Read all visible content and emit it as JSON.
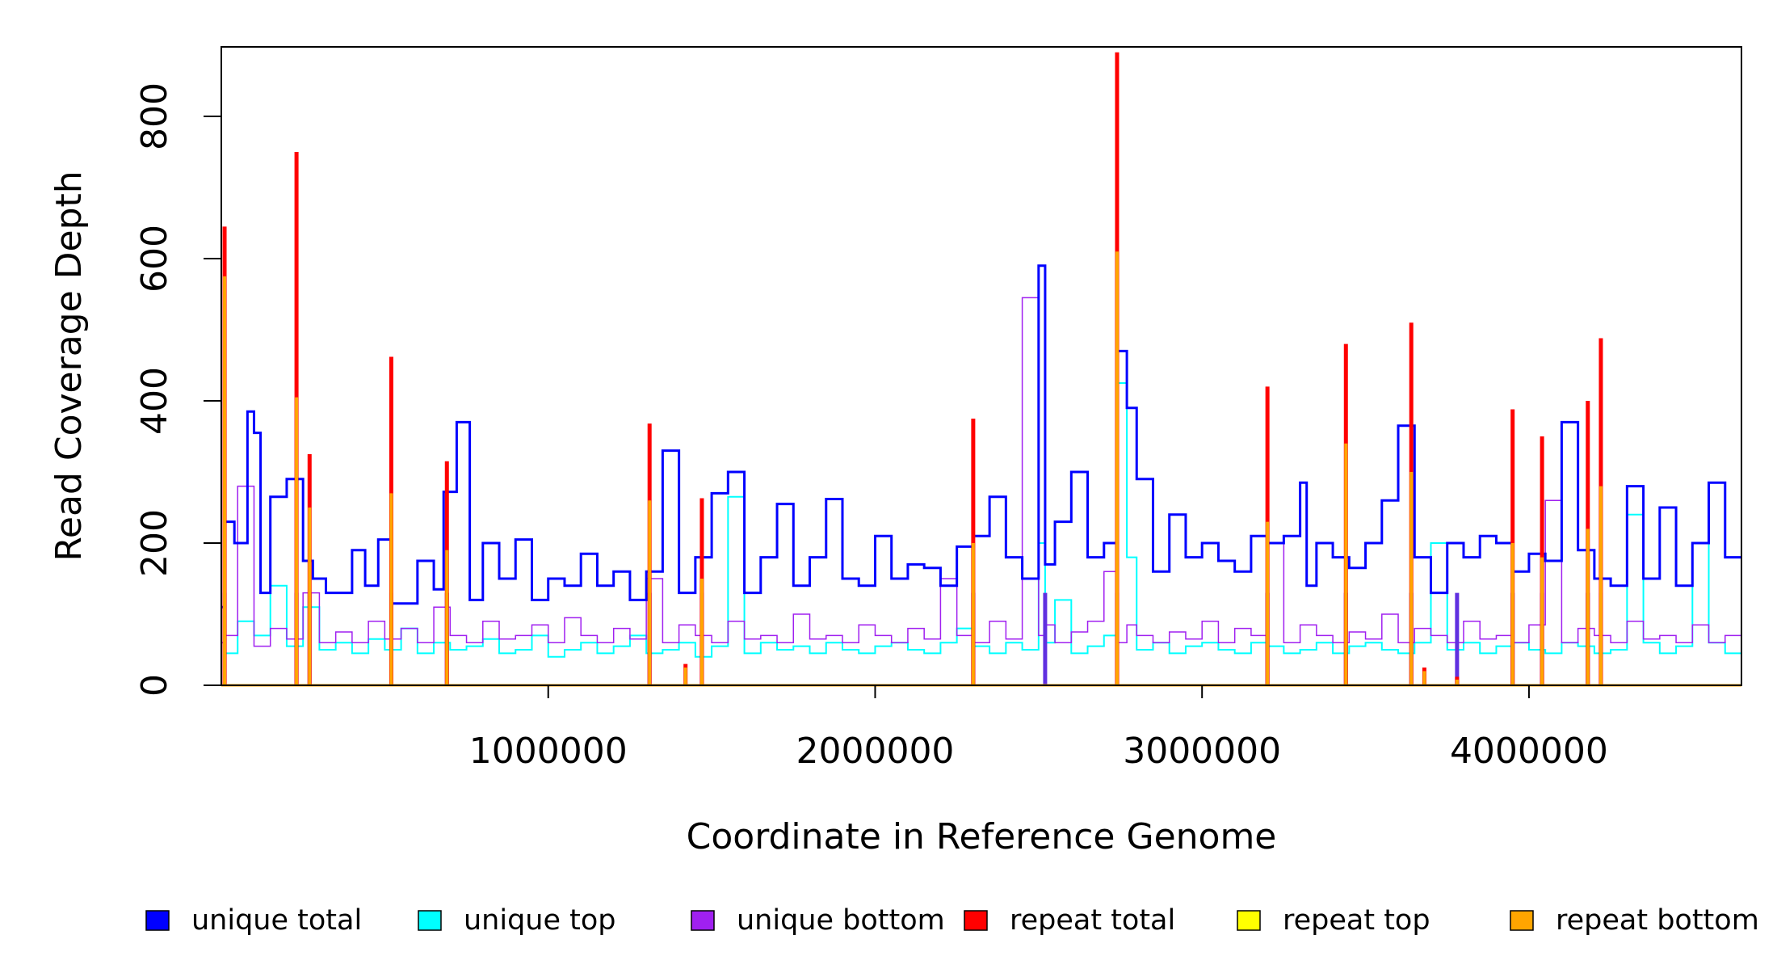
{
  "chart_data": {
    "type": "line",
    "title": "",
    "xlabel": "Coordinate in Reference Genome",
    "ylabel": "Read Coverage Depth",
    "xlim": [
      0,
      4650000
    ],
    "ylim": [
      0,
      900
    ],
    "x_ticks": [
      1000000,
      2000000,
      3000000,
      4000000
    ],
    "x_tick_labels": [
      "1000000",
      "2000000",
      "3000000",
      "4000000"
    ],
    "y_ticks": [
      0,
      200,
      400,
      600,
      800
    ],
    "y_tick_labels": [
      "0",
      "200",
      "400",
      "600",
      "800"
    ],
    "grid": false,
    "legend_position": "bottom",
    "legend": [
      {
        "label": "unique total",
        "color": "#0000ff"
      },
      {
        "label": "unique top",
        "color": "#00ffff"
      },
      {
        "label": "unique bottom",
        "color": "#a020f0"
      },
      {
        "label": "repeat total",
        "color": "#ff0000"
      },
      {
        "label": "repeat top",
        "color": "#ffff00"
      },
      {
        "label": "repeat bottom",
        "color": "#ffa500"
      }
    ],
    "series": [
      {
        "name": "unique total",
        "color": "#0000ff",
        "x": [
          10000,
          40000,
          80000,
          100000,
          120000,
          150000,
          200000,
          220000,
          250000,
          280000,
          320000,
          400000,
          440000,
          480000,
          520000,
          600000,
          650000,
          680000,
          720000,
          760000,
          800000,
          850000,
          900000,
          950000,
          1000000,
          1050000,
          1100000,
          1150000,
          1200000,
          1250000,
          1300000,
          1350000,
          1400000,
          1450000,
          1500000,
          1550000,
          1600000,
          1650000,
          1700000,
          1750000,
          1800000,
          1850000,
          1900000,
          1950000,
          2000000,
          2050000,
          2100000,
          2150000,
          2200000,
          2250000,
          2300000,
          2350000,
          2400000,
          2450000,
          2500000,
          2520000,
          2550000,
          2600000,
          2650000,
          2700000,
          2740000,
          2770000,
          2800000,
          2850000,
          2900000,
          2950000,
          3000000,
          3050000,
          3100000,
          3150000,
          3200000,
          3250000,
          3300000,
          3320000,
          3350000,
          3400000,
          3450000,
          3500000,
          3550000,
          3600000,
          3650000,
          3700000,
          3750000,
          3800000,
          3850000,
          3900000,
          3950000,
          4000000,
          4050000,
          4100000,
          4150000,
          4200000,
          4250000,
          4300000,
          4350000,
          4400000,
          4450000,
          4500000,
          4550000,
          4600000,
          4640000
        ],
        "values": [
          110,
          230,
          200,
          385,
          355,
          130,
          265,
          290,
          290,
          175,
          150,
          130,
          190,
          140,
          205,
          115,
          175,
          135,
          272,
          370,
          120,
          200,
          150,
          205,
          120,
          150,
          140,
          185,
          140,
          160,
          120,
          160,
          330,
          130,
          180,
          270,
          300,
          130,
          180,
          255,
          140,
          180,
          262,
          150,
          140,
          210,
          150,
          170,
          165,
          140,
          195,
          210,
          265,
          180,
          150,
          590,
          170,
          230,
          300,
          180,
          200,
          470,
          390,
          290,
          160,
          240,
          180,
          200,
          175,
          160,
          210,
          200,
          210,
          285,
          140,
          200,
          180,
          165,
          200,
          260,
          365,
          180,
          130,
          200,
          180,
          210,
          200,
          160,
          185,
          175,
          370,
          190,
          150,
          140,
          280,
          150,
          250,
          140,
          200,
          285,
          180
        ]
      },
      {
        "name": "unique top",
        "color": "#00ffff",
        "x": [
          10000,
          50000,
          100000,
          150000,
          200000,
          250000,
          300000,
          350000,
          400000,
          450000,
          500000,
          550000,
          600000,
          650000,
          700000,
          750000,
          800000,
          850000,
          900000,
          950000,
          1000000,
          1050000,
          1100000,
          1150000,
          1200000,
          1250000,
          1300000,
          1350000,
          1400000,
          1450000,
          1500000,
          1550000,
          1600000,
          1650000,
          1700000,
          1750000,
          1800000,
          1850000,
          1900000,
          1950000,
          2000000,
          2050000,
          2100000,
          2150000,
          2200000,
          2250000,
          2300000,
          2350000,
          2400000,
          2450000,
          2500000,
          2520000,
          2550000,
          2600000,
          2650000,
          2700000,
          2740000,
          2770000,
          2800000,
          2850000,
          2900000,
          2950000,
          3000000,
          3050000,
          3100000,
          3150000,
          3200000,
          3250000,
          3300000,
          3350000,
          3400000,
          3450000,
          3500000,
          3550000,
          3600000,
          3650000,
          3700000,
          3750000,
          3800000,
          3850000,
          3900000,
          3950000,
          4000000,
          4050000,
          4100000,
          4150000,
          4200000,
          4250000,
          4300000,
          4350000,
          4400000,
          4450000,
          4500000,
          4550000,
          4600000,
          4640000
        ],
        "values": [
          60,
          45,
          90,
          70,
          140,
          55,
          110,
          50,
          60,
          45,
          65,
          50,
          80,
          45,
          60,
          50,
          55,
          65,
          45,
          50,
          70,
          40,
          50,
          60,
          45,
          55,
          70,
          45,
          50,
          60,
          40,
          55,
          265,
          45,
          60,
          50,
          55,
          45,
          60,
          50,
          45,
          55,
          60,
          50,
          45,
          60,
          80,
          55,
          45,
          60,
          50,
          200,
          60,
          120,
          45,
          55,
          70,
          425,
          180,
          50,
          60,
          45,
          55,
          60,
          50,
          45,
          60,
          55,
          45,
          50,
          60,
          45,
          55,
          60,
          50,
          45,
          60,
          200,
          50,
          60,
          45,
          55,
          60,
          50,
          45,
          60,
          55,
          45,
          50,
          240,
          60,
          45,
          55,
          200,
          60,
          45
        ]
      },
      {
        "name": "unique bottom",
        "color": "#a020f0",
        "x": [
          10000,
          50000,
          100000,
          150000,
          200000,
          250000,
          300000,
          350000,
          400000,
          450000,
          500000,
          550000,
          600000,
          650000,
          700000,
          750000,
          800000,
          850000,
          900000,
          950000,
          1000000,
          1050000,
          1100000,
          1150000,
          1200000,
          1250000,
          1300000,
          1350000,
          1400000,
          1450000,
          1500000,
          1550000,
          1600000,
          1650000,
          1700000,
          1750000,
          1800000,
          1850000,
          1900000,
          1950000,
          2000000,
          2050000,
          2100000,
          2150000,
          2200000,
          2250000,
          2300000,
          2350000,
          2400000,
          2450000,
          2500000,
          2520000,
          2550000,
          2600000,
          2650000,
          2700000,
          2740000,
          2770000,
          2800000,
          2850000,
          2900000,
          2950000,
          3000000,
          3050000,
          3100000,
          3150000,
          3200000,
          3250000,
          3300000,
          3350000,
          3400000,
          3450000,
          3500000,
          3550000,
          3600000,
          3650000,
          3700000,
          3750000,
          3800000,
          3850000,
          3900000,
          3950000,
          4000000,
          4050000,
          4100000,
          4150000,
          4200000,
          4250000,
          4300000,
          4350000,
          4400000,
          4450000,
          4500000,
          4550000,
          4600000,
          4640000
        ],
        "values": [
          60,
          70,
          280,
          55,
          80,
          65,
          130,
          60,
          75,
          60,
          90,
          65,
          80,
          60,
          110,
          70,
          60,
          90,
          65,
          70,
          85,
          60,
          95,
          70,
          60,
          80,
          65,
          150,
          60,
          85,
          70,
          60,
          90,
          65,
          70,
          60,
          100,
          65,
          70,
          60,
          85,
          70,
          60,
          80,
          65,
          150,
          70,
          60,
          90,
          65,
          545,
          70,
          85,
          60,
          75,
          90,
          160,
          60,
          85,
          70,
          60,
          75,
          65,
          90,
          60,
          80,
          70,
          200,
          60,
          85,
          70,
          60,
          75,
          65,
          100,
          60,
          80,
          70,
          60,
          90,
          65,
          70,
          60,
          85,
          260,
          60,
          80,
          70,
          60,
          90,
          65,
          70,
          60,
          85,
          60,
          70
        ]
      },
      {
        "name": "repeat total",
        "color": "#ff0000",
        "x": [
          10000,
          230000,
          270000,
          520000,
          690000,
          1310000,
          1420000,
          1470000,
          2300000,
          2740000,
          3200000,
          3440000,
          3640000,
          3680000,
          3780000,
          3950000,
          4040000,
          4180000,
          4220000
        ],
        "values": [
          645,
          750,
          325,
          462,
          315,
          368,
          30,
          263,
          375,
          890,
          420,
          480,
          510,
          25,
          12,
          388,
          350,
          400,
          488
        ]
      },
      {
        "name": "repeat top",
        "color": "#ffff00",
        "x": [
          10000,
          2740000
        ],
        "values": [
          0,
          0
        ]
      },
      {
        "name": "repeat bottom",
        "color": "#ffa500",
        "x": [
          10000,
          230000,
          270000,
          520000,
          690000,
          1310000,
          1420000,
          1470000,
          2300000,
          2740000,
          3200000,
          3440000,
          3640000,
          3680000,
          3780000,
          3950000,
          4040000,
          4180000,
          4220000
        ],
        "values": [
          575,
          405,
          250,
          270,
          190,
          260,
          25,
          150,
          200,
          610,
          230,
          340,
          300,
          20,
          8,
          200,
          180,
          220,
          280
        ]
      }
    ]
  }
}
